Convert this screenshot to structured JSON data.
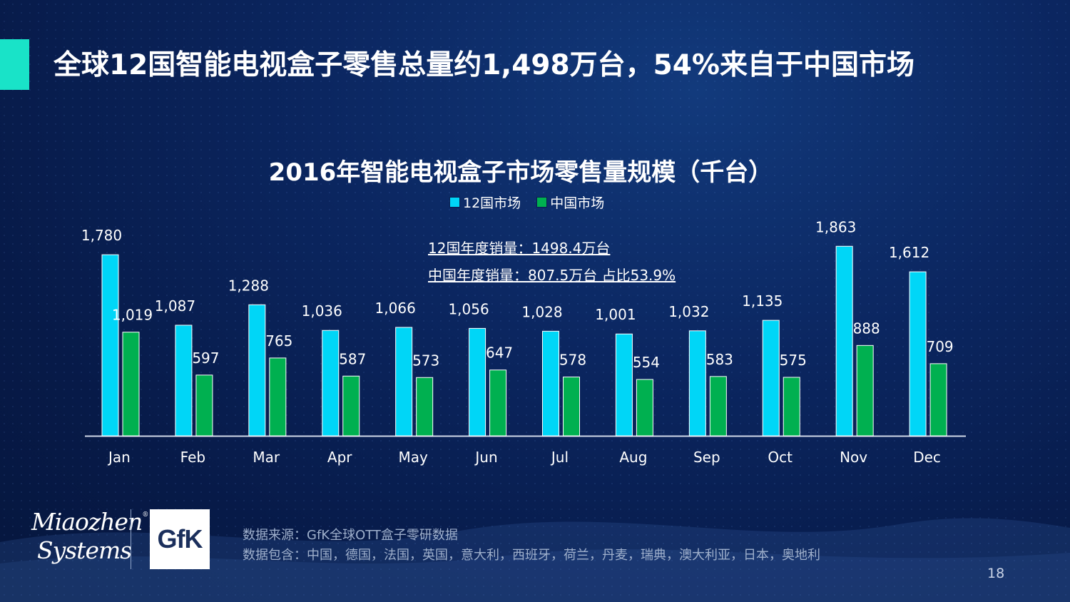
{
  "header": {
    "title": "全球12国智能电视盒子零售总量约1,498万台，54%来自于中国市场"
  },
  "chart_data": {
    "type": "bar",
    "title": "2016年智能电视盒子市场零售量规模（千台）",
    "categories": [
      "Jan",
      "Feb",
      "Mar",
      "Apr",
      "May",
      "Jun",
      "Jul",
      "Aug",
      "Sep",
      "Oct",
      "Nov",
      "Dec"
    ],
    "series": [
      {
        "name": "12国市场",
        "color": "#00d6f7",
        "values": [
          1780,
          1087,
          1288,
          1036,
          1066,
          1056,
          1028,
          1001,
          1032,
          1135,
          1863,
          1612
        ],
        "labels": [
          "1,780",
          "1,087",
          "1,288",
          "1,036",
          "1,066",
          "1,056",
          "1,028",
          "1,001",
          "1,032",
          "1,135",
          "1,863",
          "1,612"
        ]
      },
      {
        "name": "中国市场",
        "color": "#00b050",
        "values": [
          1019,
          597,
          765,
          587,
          573,
          647,
          578,
          554,
          583,
          575,
          888,
          709
        ],
        "labels": [
          "1,019",
          "597",
          "765",
          "587",
          "573",
          "647",
          "578",
          "554",
          "583",
          "575",
          "888",
          "709"
        ]
      }
    ],
    "ylim": [
      0,
      1900
    ],
    "grid": false,
    "legend": "top-center",
    "annotations": [
      "12国年度销量：1498.4万台",
      "中国年度销量：807.5万台  占比53.9%"
    ]
  },
  "footer": {
    "logo_miaozhen_line1": "Miaozhen",
    "logo_miaozhen_line2": "Systems",
    "logo_reg": "®",
    "logo_gfk": "GfK",
    "source_line1": "数据来源：GfK全球OTT盒子零研数据",
    "source_line2": "数据包含：中国，德国，法国，英国，意大利，西班牙，荷兰，丹麦，瑞典，澳大利亚，日本，奥地利",
    "page_number": "18"
  },
  "colors": {
    "accent": "#19e3c8",
    "background": "#0b2660"
  }
}
